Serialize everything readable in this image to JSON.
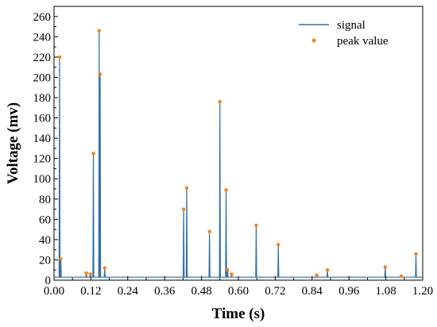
{
  "chart_data": {
    "type": "line",
    "xlabel": "Time (s)",
    "ylabel": "Voltage (mv)",
    "xlim": [
      0.0,
      1.2
    ],
    "ylim": [
      0,
      270
    ],
    "xticks": [
      "0.00",
      "0.12",
      "0.24",
      "0.36",
      "0.48",
      "0.60",
      "0.72",
      "0.84",
      "0.96",
      "1.08",
      "1.20"
    ],
    "yticks": [
      "0",
      "20",
      "40",
      "60",
      "80",
      "100",
      "120",
      "140",
      "160",
      "180",
      "200",
      "220",
      "240",
      "260"
    ],
    "grid": false,
    "legend_position": "top-right",
    "baseline": 3,
    "series": [
      {
        "name": "signal",
        "style": "line",
        "color": "#2f6fa8",
        "spikes": [
          {
            "x": 0.018,
            "y": 220
          },
          {
            "x": 0.022,
            "y": 21
          },
          {
            "x": 0.105,
            "y": 7
          },
          {
            "x": 0.118,
            "y": 6
          },
          {
            "x": 0.128,
            "y": 125
          },
          {
            "x": 0.147,
            "y": 246
          },
          {
            "x": 0.15,
            "y": 203
          },
          {
            "x": 0.165,
            "y": 12
          },
          {
            "x": 0.422,
            "y": 70
          },
          {
            "x": 0.432,
            "y": 91
          },
          {
            "x": 0.506,
            "y": 48
          },
          {
            "x": 0.54,
            "y": 176
          },
          {
            "x": 0.56,
            "y": 89
          },
          {
            "x": 0.565,
            "y": 10
          },
          {
            "x": 0.578,
            "y": 6
          },
          {
            "x": 0.658,
            "y": 54
          },
          {
            "x": 0.73,
            "y": 35
          },
          {
            "x": 0.855,
            "y": 5
          },
          {
            "x": 0.89,
            "y": 10
          },
          {
            "x": 1.078,
            "y": 13
          },
          {
            "x": 1.13,
            "y": 4
          },
          {
            "x": 1.178,
            "y": 26
          }
        ]
      },
      {
        "name": "peak value",
        "style": "scatter",
        "color": "#ff7f0e",
        "points": [
          {
            "x": 0.018,
            "y": 220
          },
          {
            "x": 0.022,
            "y": 21
          },
          {
            "x": 0.105,
            "y": 7
          },
          {
            "x": 0.118,
            "y": 6
          },
          {
            "x": 0.128,
            "y": 125
          },
          {
            "x": 0.147,
            "y": 246
          },
          {
            "x": 0.15,
            "y": 203
          },
          {
            "x": 0.165,
            "y": 12
          },
          {
            "x": 0.422,
            "y": 70
          },
          {
            "x": 0.432,
            "y": 91
          },
          {
            "x": 0.506,
            "y": 48
          },
          {
            "x": 0.54,
            "y": 176
          },
          {
            "x": 0.56,
            "y": 89
          },
          {
            "x": 0.565,
            "y": 10
          },
          {
            "x": 0.578,
            "y": 6
          },
          {
            "x": 0.658,
            "y": 54
          },
          {
            "x": 0.73,
            "y": 35
          },
          {
            "x": 0.855,
            "y": 5
          },
          {
            "x": 0.89,
            "y": 10
          },
          {
            "x": 1.078,
            "y": 13
          },
          {
            "x": 1.13,
            "y": 4
          },
          {
            "x": 1.178,
            "y": 26
          }
        ]
      }
    ]
  }
}
